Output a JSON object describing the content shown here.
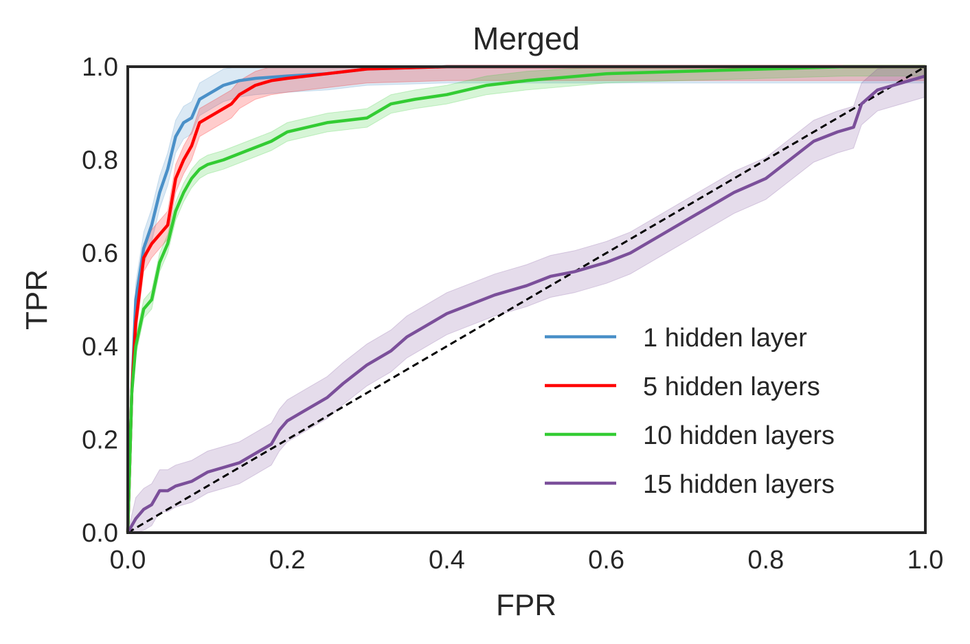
{
  "chart_data": {
    "type": "line",
    "title": "Merged",
    "xlabel": "FPR",
    "ylabel": "TPR",
    "xlim": [
      0.0,
      1.0
    ],
    "ylim": [
      0.0,
      1.0
    ],
    "x_ticks": [
      "0.0",
      "0.2",
      "0.4",
      "0.6",
      "0.8",
      "1.0"
    ],
    "y_ticks": [
      "0.0",
      "0.2",
      "0.4",
      "0.6",
      "0.8",
      "1.0"
    ],
    "grid": false,
    "legend_position": "lower-right",
    "shaded_band": true,
    "series": [
      {
        "name": "1 hidden layer",
        "color": "#4a90c8",
        "band": 0.035,
        "x": [
          0.0,
          0.005,
          0.01,
          0.02,
          0.03,
          0.04,
          0.05,
          0.06,
          0.07,
          0.08,
          0.09,
          0.1,
          0.11,
          0.12,
          0.14,
          0.16,
          0.2,
          0.25,
          0.3,
          0.4,
          0.5,
          0.7,
          0.9,
          1.0
        ],
        "y": [
          0.0,
          0.3,
          0.5,
          0.61,
          0.66,
          0.73,
          0.78,
          0.85,
          0.88,
          0.89,
          0.93,
          0.94,
          0.95,
          0.96,
          0.97,
          0.975,
          0.98,
          0.985,
          0.995,
          1.0,
          1.0,
          1.0,
          1.0,
          1.0
        ]
      },
      {
        "name": "5 hidden layers",
        "color": "#ff0000",
        "band": 0.03,
        "x": [
          0.0,
          0.005,
          0.01,
          0.02,
          0.03,
          0.04,
          0.05,
          0.06,
          0.07,
          0.08,
          0.09,
          0.1,
          0.11,
          0.12,
          0.13,
          0.14,
          0.16,
          0.18,
          0.2,
          0.25,
          0.3,
          0.4,
          0.6,
          0.9,
          1.0
        ],
        "y": [
          0.0,
          0.3,
          0.45,
          0.59,
          0.62,
          0.64,
          0.66,
          0.76,
          0.8,
          0.83,
          0.88,
          0.89,
          0.9,
          0.91,
          0.92,
          0.94,
          0.96,
          0.97,
          0.975,
          0.985,
          0.995,
          1.0,
          1.0,
          1.0,
          1.0
        ]
      },
      {
        "name": "10 hidden layers",
        "color": "#33cc33",
        "band": 0.02,
        "x": [
          0.0,
          0.005,
          0.01,
          0.02,
          0.03,
          0.04,
          0.05,
          0.06,
          0.07,
          0.08,
          0.09,
          0.1,
          0.12,
          0.15,
          0.18,
          0.2,
          0.25,
          0.3,
          0.33,
          0.36,
          0.4,
          0.45,
          0.5,
          0.6,
          0.7,
          0.8,
          0.9,
          1.0
        ],
        "y": [
          0.0,
          0.3,
          0.4,
          0.48,
          0.5,
          0.58,
          0.62,
          0.69,
          0.73,
          0.76,
          0.78,
          0.79,
          0.8,
          0.82,
          0.84,
          0.86,
          0.88,
          0.89,
          0.92,
          0.93,
          0.94,
          0.96,
          0.97,
          0.985,
          0.99,
          0.995,
          1.0,
          1.0
        ]
      },
      {
        "name": "15 hidden layers",
        "color": "#7b4f9a",
        "band": 0.045,
        "x": [
          0.0,
          0.01,
          0.02,
          0.03,
          0.04,
          0.05,
          0.06,
          0.08,
          0.1,
          0.12,
          0.14,
          0.16,
          0.18,
          0.19,
          0.2,
          0.22,
          0.25,
          0.27,
          0.3,
          0.33,
          0.35,
          0.37,
          0.4,
          0.43,
          0.46,
          0.5,
          0.53,
          0.56,
          0.6,
          0.63,
          0.67,
          0.7,
          0.73,
          0.76,
          0.8,
          0.83,
          0.86,
          0.89,
          0.91,
          0.92,
          0.94,
          0.96,
          0.98,
          1.0
        ],
        "y": [
          0.0,
          0.03,
          0.05,
          0.06,
          0.09,
          0.09,
          0.1,
          0.11,
          0.13,
          0.14,
          0.15,
          0.17,
          0.19,
          0.22,
          0.24,
          0.26,
          0.29,
          0.32,
          0.36,
          0.39,
          0.42,
          0.44,
          0.47,
          0.49,
          0.51,
          0.53,
          0.55,
          0.56,
          0.58,
          0.6,
          0.64,
          0.67,
          0.7,
          0.73,
          0.76,
          0.8,
          0.84,
          0.86,
          0.87,
          0.92,
          0.95,
          0.96,
          0.97,
          0.98
        ]
      }
    ],
    "reference_line": {
      "style": "dashed",
      "color": "#000000",
      "x": [
        0.0,
        1.0
      ],
      "y": [
        0.0,
        1.0
      ]
    }
  }
}
